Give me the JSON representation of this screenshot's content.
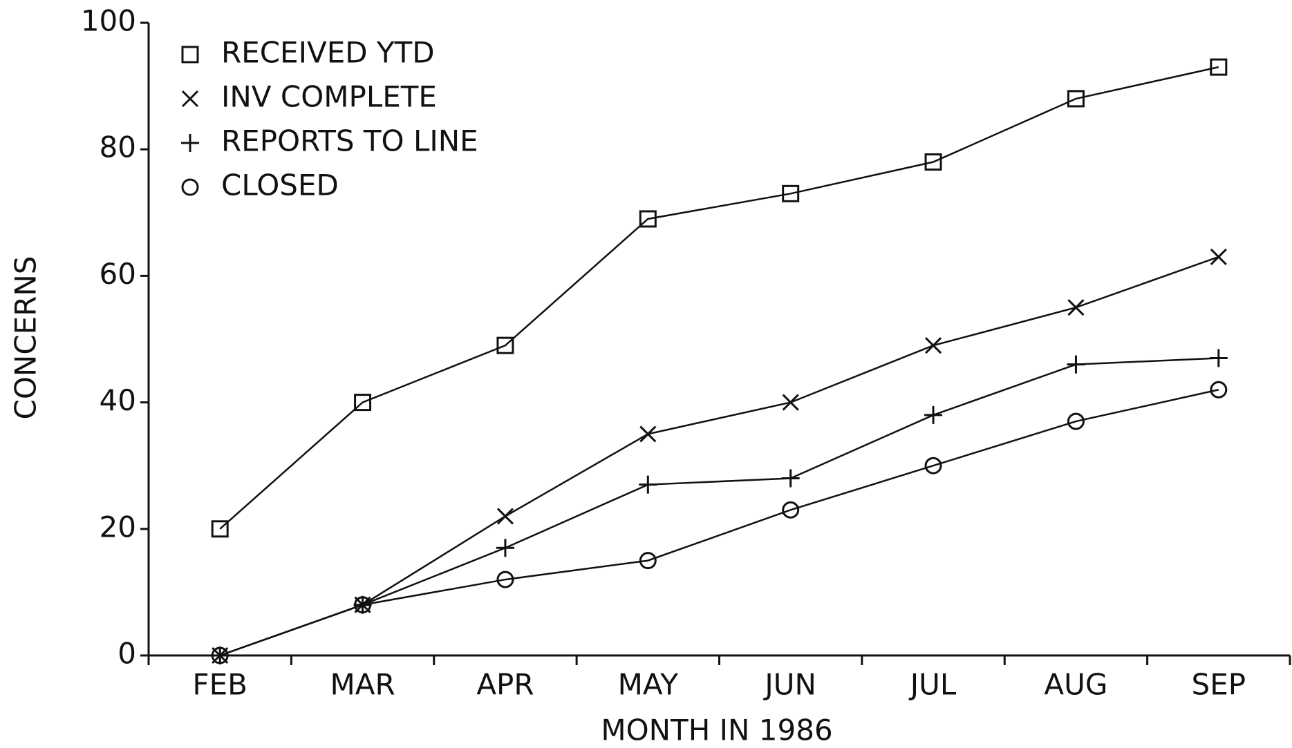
{
  "chart_data": {
    "type": "line",
    "categories": [
      "FEB",
      "MAR",
      "APR",
      "MAY",
      "JUN",
      "JUL",
      "AUG",
      "SEP"
    ],
    "series": [
      {
        "name": "RECEIVED YTD",
        "color": "#111111",
        "marker": "square",
        "values": [
          20,
          40,
          49,
          69,
          73,
          78,
          88,
          93
        ]
      },
      {
        "name": "INV COMPLETE",
        "color": "#111111",
        "marker": "x",
        "values": [
          0,
          8,
          22,
          35,
          40,
          49,
          55,
          63
        ]
      },
      {
        "name": "REPORTS TO LINE",
        "color": "#111111",
        "marker": "plus",
        "values": [
          0,
          8,
          17,
          27,
          28,
          38,
          46,
          47
        ]
      },
      {
        "name": "CLOSED",
        "color": "#111111",
        "marker": "circle",
        "values": [
          0,
          8,
          12,
          15,
          23,
          30,
          37,
          42
        ]
      }
    ],
    "x_label": "MONTH IN 1986",
    "y_label": "CONCERNS",
    "ylim": [
      0,
      100
    ],
    "yticks": [
      0,
      20,
      40,
      60,
      80,
      100
    ],
    "grid": false,
    "legend": "upper left"
  }
}
